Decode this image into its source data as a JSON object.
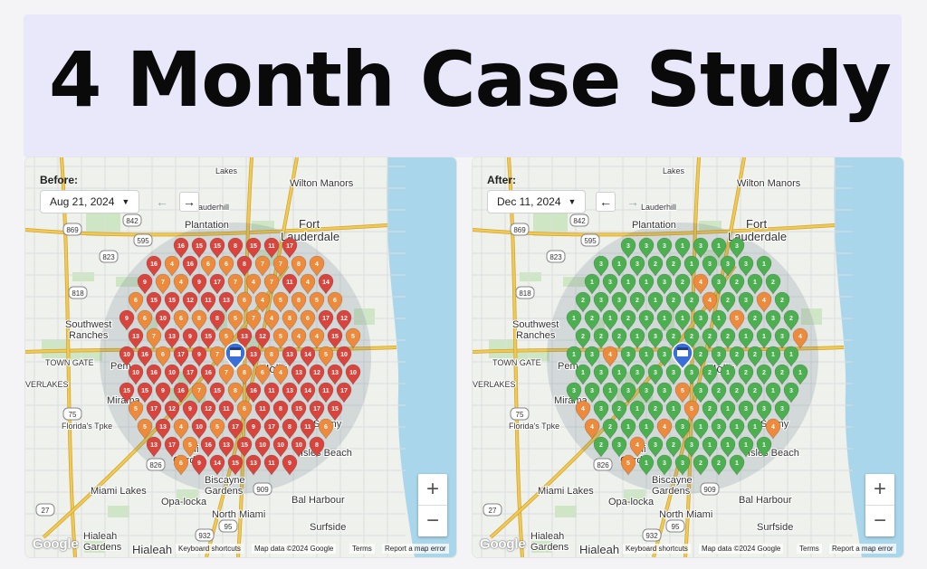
{
  "title": "4 Month Case Study",
  "panels": {
    "before": {
      "label": "Before:",
      "date": "Aug 21, 2024",
      "dropdown_icon": "caret-down-icon",
      "prev_icon": "arrow-left-icon",
      "next_icon": "arrow-right-icon",
      "zoom_in": "+",
      "zoom_out": "−",
      "logo": "Google",
      "place_labels": {
        "lakes": "Lakes",
        "wilton": "Wilton Manors",
        "lauderhill": "Lauderhill",
        "plantation": "Plantation",
        "fort": "Fort",
        "lauderdale": "Lauderdale",
        "southwest": "Southwest",
        "ranches": "Ranches",
        "towngate": "TOWN GATE",
        "everlakes": "VERLAKES",
        "pembroke": "Pem",
        "miramar": "Mirama",
        "hollywood": "Holly",
        "florida": "Florida's Tpke",
        "miami_gardens": "Garden",
        "miami_gardens2": "Mi",
        "sunny": "Sunny",
        "isles": "Isles Beach",
        "biscayne": "Biscayne",
        "gardens": "Gardens",
        "miami_lakes": "Miami Lakes",
        "opa": "Opa-locka",
        "north_miami": "North Miami",
        "bal": "Bal Harbour",
        "surfside": "Surfside",
        "hialeah": "Hialeah",
        "hialeah_gardens": "Hialeah",
        "hialeah_gardens2": "Gardens",
        "road_842": "842",
        "road_869": "869",
        "road_595": "595",
        "road_823": "823",
        "road_818": "818",
        "road_75": "75",
        "road_826": "826",
        "road_909": "909",
        "road_27": "27",
        "road_95": "95",
        "road_932": "932"
      },
      "attribution": {
        "shortcuts": "Keyboard shortcuts",
        "mapdata": "Map data ©2024 Google",
        "terms": "Terms",
        "report": "Report a map error"
      }
    },
    "after": {
      "label": "After:",
      "date": "Dec 11, 2024",
      "dropdown_icon": "caret-down-icon",
      "prev_icon": "arrow-left-icon",
      "next_icon": "arrow-right-icon",
      "zoom_in": "+",
      "zoom_out": "−",
      "logo": "Google",
      "place_labels": {
        "lakes": "Lakes",
        "wilton": "Wilton Manors",
        "lauderhill": "Lauderhill",
        "plantation": "Plantation",
        "fort": "Fort",
        "lauderdale": "Lauderdale",
        "southwest": "Southwest",
        "ranches": "Ranches",
        "towngate": "TOWN GATE",
        "everlakes": "VERLAKES",
        "pembroke": "Pem",
        "miramar": "Mirama",
        "hollywood": "Holly",
        "florida": "Florida's Tpke",
        "miami_gardens": "Garden",
        "miami_gardens2": "Mi",
        "sunny": "Sunny",
        "isles": "Isles Beach",
        "biscayne": "Biscayne",
        "gardens": "Gardens",
        "miami_lakes": "Miami Lakes",
        "opa": "Opa-locka",
        "north_miami": "North Miami",
        "bal": "Bal Harbour",
        "surfside": "Surfside",
        "hialeah": "Hialeah",
        "hialeah_gardens": "Hialeah",
        "hialeah_gardens2": "Gardens",
        "road_842": "842",
        "road_869": "869",
        "road_595": "595",
        "road_823": "823",
        "road_818": "818",
        "road_75": "75",
        "road_826": "826",
        "road_909": "909",
        "road_27": "27",
        "road_95": "95",
        "road_932": "932"
      },
      "attribution": {
        "shortcuts": "Keyboard shortcuts",
        "mapdata": "Map data ©2024 Google",
        "terms": "Terms",
        "report": "Report a map error"
      }
    }
  },
  "pin_colors": {
    "red": "#d9453d",
    "orange": "#ee8a3c",
    "green": "#4caf50",
    "business": "#3b6fd8"
  },
  "map_colors": {
    "land": "#eef1ec",
    "water": "#a9d6ea",
    "park": "#cfe6c4",
    "road": "#ffffff",
    "highway": "#f5c94e"
  }
}
